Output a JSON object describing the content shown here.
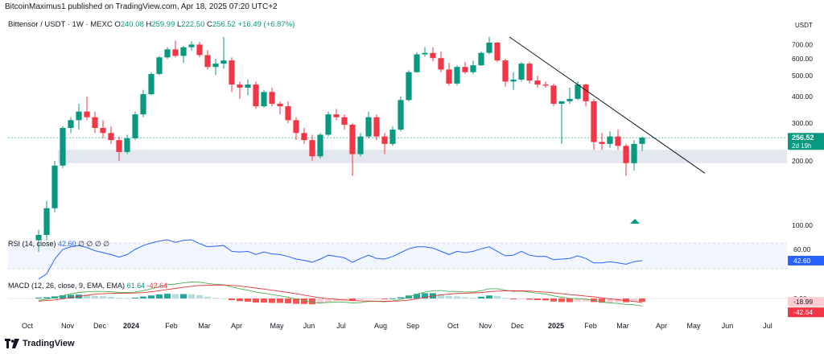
{
  "header": {
    "publisher": "BitcoinMaximus1 published on TradingView.com, Apr 18, 2025 07:20 UTC+2",
    "symbol": "Bittensor / USDT · 1W · MEXC",
    "ohlc": {
      "o_label": "O",
      "o": "240.08",
      "h_label": "H",
      "h": "259.99",
      "l_label": "L",
      "l": "222.50",
      "c_label": "C",
      "c": "256.52",
      "change": "+16.49 (+6.87%)"
    }
  },
  "footer": {
    "brand": "TradingView"
  },
  "colors": {
    "up": "#089981",
    "down": "#f23645",
    "rsi": "#2962ff",
    "macd_line": "#2962ff",
    "signal_line": "#ff6d00",
    "trendline": "#131722",
    "support_zone": "#e0e3eb"
  },
  "chart_data": [
    {
      "type": "candlestick",
      "title": "Bittensor / USDT · 1W · MEXC",
      "currency": "USDT",
      "y_ticks": [
        "700.00",
        "600.00",
        "500.00",
        "400.00",
        "300.00",
        "200.00",
        "100.00"
      ],
      "x_ticks": [
        "Oct",
        "Nov",
        "Dec",
        "2024",
        "Feb",
        "Mar",
        "Apr",
        "May",
        "Jun",
        "Jul",
        "Aug",
        "Sep",
        "Oct",
        "Nov",
        "Dec",
        "2025",
        "Feb",
        "Mar",
        "Apr",
        "May",
        "Jun",
        "Jul"
      ],
      "price_label": "256.52",
      "countdown_label": "2d 19h",
      "support_zone": [
        195,
        225
      ],
      "trendline": {
        "from": [
          "2024-11-25",
          760
        ],
        "to": [
          "2025-05-05",
          175
        ]
      },
      "candles": [
        {
          "o": 85,
          "h": 95,
          "l": 75,
          "c": 90
        },
        {
          "o": 90,
          "h": 130,
          "l": 85,
          "c": 120
        },
        {
          "o": 120,
          "h": 200,
          "l": 115,
          "c": 190
        },
        {
          "o": 190,
          "h": 290,
          "l": 185,
          "c": 285
        },
        {
          "o": 285,
          "h": 320,
          "l": 270,
          "c": 310
        },
        {
          "o": 310,
          "h": 370,
          "l": 280,
          "c": 340
        },
        {
          "o": 340,
          "h": 400,
          "l": 310,
          "c": 320
        },
        {
          "o": 320,
          "h": 340,
          "l": 270,
          "c": 285
        },
        {
          "o": 285,
          "h": 310,
          "l": 255,
          "c": 270
        },
        {
          "o": 270,
          "h": 290,
          "l": 240,
          "c": 250
        },
        {
          "o": 250,
          "h": 260,
          "l": 200,
          "c": 220
        },
        {
          "o": 220,
          "h": 265,
          "l": 215,
          "c": 255
        },
        {
          "o": 255,
          "h": 340,
          "l": 250,
          "c": 330
        },
        {
          "o": 330,
          "h": 430,
          "l": 320,
          "c": 410
        },
        {
          "o": 410,
          "h": 520,
          "l": 405,
          "c": 510
        },
        {
          "o": 510,
          "h": 620,
          "l": 505,
          "c": 610
        },
        {
          "o": 610,
          "h": 680,
          "l": 600,
          "c": 665
        },
        {
          "o": 665,
          "h": 730,
          "l": 610,
          "c": 620
        },
        {
          "o": 620,
          "h": 690,
          "l": 575,
          "c": 680
        },
        {
          "o": 680,
          "h": 725,
          "l": 655,
          "c": 700
        },
        {
          "o": 700,
          "h": 720,
          "l": 610,
          "c": 625
        },
        {
          "o": 625,
          "h": 660,
          "l": 535,
          "c": 550
        },
        {
          "o": 550,
          "h": 600,
          "l": 505,
          "c": 570
        },
        {
          "o": 570,
          "h": 760,
          "l": 540,
          "c": 590
        },
        {
          "o": 590,
          "h": 610,
          "l": 420,
          "c": 455
        },
        {
          "o": 455,
          "h": 470,
          "l": 390,
          "c": 440
        },
        {
          "o": 440,
          "h": 480,
          "l": 405,
          "c": 455
        },
        {
          "o": 455,
          "h": 470,
          "l": 350,
          "c": 360
        },
        {
          "o": 360,
          "h": 430,
          "l": 355,
          "c": 420
        },
        {
          "o": 420,
          "h": 440,
          "l": 360,
          "c": 370
        },
        {
          "o": 370,
          "h": 380,
          "l": 330,
          "c": 360
        },
        {
          "o": 360,
          "h": 380,
          "l": 300,
          "c": 310
        },
        {
          "o": 310,
          "h": 320,
          "l": 250,
          "c": 270
        },
        {
          "o": 270,
          "h": 285,
          "l": 240,
          "c": 250
        },
        {
          "o": 250,
          "h": 265,
          "l": 200,
          "c": 210
        },
        {
          "o": 210,
          "h": 270,
          "l": 205,
          "c": 265
        },
        {
          "o": 265,
          "h": 340,
          "l": 260,
          "c": 330
        },
        {
          "o": 330,
          "h": 350,
          "l": 310,
          "c": 320
        },
        {
          "o": 320,
          "h": 330,
          "l": 280,
          "c": 295
        },
        {
          "o": 295,
          "h": 300,
          "l": 170,
          "c": 215
        },
        {
          "o": 215,
          "h": 270,
          "l": 210,
          "c": 260
        },
        {
          "o": 260,
          "h": 340,
          "l": 255,
          "c": 320
        },
        {
          "o": 320,
          "h": 330,
          "l": 250,
          "c": 260
        },
        {
          "o": 260,
          "h": 270,
          "l": 215,
          "c": 240
        },
        {
          "o": 240,
          "h": 290,
          "l": 235,
          "c": 280
        },
        {
          "o": 280,
          "h": 400,
          "l": 275,
          "c": 385
        },
        {
          "o": 385,
          "h": 530,
          "l": 380,
          "c": 520
        },
        {
          "o": 520,
          "h": 645,
          "l": 515,
          "c": 630
        },
        {
          "o": 630,
          "h": 680,
          "l": 615,
          "c": 640
        },
        {
          "o": 640,
          "h": 680,
          "l": 585,
          "c": 605
        },
        {
          "o": 605,
          "h": 650,
          "l": 520,
          "c": 535
        },
        {
          "o": 535,
          "h": 575,
          "l": 450,
          "c": 460
        },
        {
          "o": 460,
          "h": 560,
          "l": 450,
          "c": 550
        },
        {
          "o": 550,
          "h": 580,
          "l": 510,
          "c": 520
        },
        {
          "o": 520,
          "h": 590,
          "l": 510,
          "c": 560
        },
        {
          "o": 560,
          "h": 650,
          "l": 555,
          "c": 640
        },
        {
          "o": 640,
          "h": 760,
          "l": 630,
          "c": 715
        },
        {
          "o": 715,
          "h": 720,
          "l": 580,
          "c": 590
        },
        {
          "o": 590,
          "h": 600,
          "l": 445,
          "c": 470
        },
        {
          "o": 470,
          "h": 520,
          "l": 430,
          "c": 480
        },
        {
          "o": 480,
          "h": 580,
          "l": 470,
          "c": 570
        },
        {
          "o": 570,
          "h": 580,
          "l": 460,
          "c": 475
        },
        {
          "o": 475,
          "h": 500,
          "l": 440,
          "c": 455
        },
        {
          "o": 455,
          "h": 470,
          "l": 440,
          "c": 450
        },
        {
          "o": 450,
          "h": 460,
          "l": 360,
          "c": 370
        },
        {
          "o": 370,
          "h": 380,
          "l": 240,
          "c": 380
        },
        {
          "o": 380,
          "h": 440,
          "l": 370,
          "c": 390
        },
        {
          "o": 390,
          "h": 470,
          "l": 385,
          "c": 455
        },
        {
          "o": 455,
          "h": 460,
          "l": 360,
          "c": 380
        },
        {
          "o": 380,
          "h": 390,
          "l": 225,
          "c": 245
        },
        {
          "o": 245,
          "h": 270,
          "l": 225,
          "c": 240
        },
        {
          "o": 240,
          "h": 275,
          "l": 230,
          "c": 260
        },
        {
          "o": 260,
          "h": 280,
          "l": 225,
          "c": 235
        },
        {
          "o": 235,
          "h": 240,
          "l": 170,
          "c": 195
        },
        {
          "o": 195,
          "h": 250,
          "l": 180,
          "c": 240
        },
        {
          "o": 240,
          "h": 260,
          "l": 222.5,
          "c": 256.52
        }
      ]
    },
    {
      "type": "line",
      "title": "RSI (14, close)",
      "label_value": "42.60",
      "placeholders": [
        "∅",
        "∅",
        "∅",
        "∅"
      ],
      "bands": [
        70,
        30
      ],
      "y_ticks": [
        "60.00"
      ],
      "last_value_label": "42.60",
      "values": [
        14,
        22,
        45,
        60,
        64,
        66,
        63,
        58,
        55,
        52,
        48,
        52,
        60,
        66,
        70,
        73,
        75,
        71,
        74,
        75,
        69,
        64,
        65,
        66,
        57,
        56,
        57,
        52,
        56,
        53,
        52,
        49,
        45,
        43,
        40,
        45,
        51,
        49,
        47,
        40,
        46,
        51,
        46,
        45,
        49,
        55,
        61,
        64,
        64,
        62,
        57,
        52,
        57,
        55,
        57,
        61,
        64,
        57,
        50,
        51,
        57,
        51,
        49,
        49,
        44,
        45,
        46,
        50,
        46,
        39,
        39,
        41,
        39,
        37,
        41,
        42.6
      ]
    },
    {
      "type": "histogram",
      "title": "MACD (12, 26, close, 9, EMA, EMA)",
      "label_values": [
        "61.64",
        "-42.64"
      ],
      "last_value_labels": [
        "0.00",
        "-18.99",
        "-42.64"
      ],
      "y_ticks": [
        "0.00"
      ],
      "macd": [
        -10,
        -5,
        4,
        16,
        26,
        34,
        38,
        40,
        40,
        38,
        34,
        33,
        36,
        44,
        55,
        67,
        78,
        82,
        88,
        93,
        92,
        85,
        80,
        78,
        65,
        55,
        47,
        36,
        30,
        22,
        15,
        7,
        -3,
        -12,
        -22,
        -25,
        -22,
        -20,
        -20,
        -25,
        -23,
        -17,
        -17,
        -18,
        -14,
        -6,
        8,
        24,
        36,
        44,
        45,
        40,
        40,
        37,
        37,
        44,
        55,
        55,
        47,
        40,
        42,
        36,
        30,
        25,
        15,
        7,
        1,
        -1,
        -4,
        -11,
        -20,
        -25,
        -28,
        -33,
        -35,
        -42.64
      ],
      "signal": [
        -15,
        -12,
        -8,
        -2,
        5,
        12,
        18,
        24,
        27,
        29,
        30,
        30,
        31,
        33,
        38,
        44,
        51,
        57,
        63,
        69,
        73,
        75,
        76,
        76,
        74,
        70,
        65,
        59,
        53,
        47,
        40,
        34,
        27,
        19,
        11,
        4,
        -1,
        -5,
        -8,
        -11,
        -14,
        -14,
        -15,
        -16,
        -15,
        -13,
        -9,
        -2,
        6,
        14,
        21,
        25,
        28,
        30,
        32,
        34,
        38,
        42,
        43,
        43,
        43,
        42,
        39,
        36,
        32,
        27,
        22,
        18,
        13,
        9,
        4,
        -2,
        -7,
        -12,
        -17,
        -23.65
      ],
      "histogram": [
        5,
        7,
        12,
        18,
        21,
        22,
        20,
        16,
        13,
        9,
        4,
        3,
        5,
        11,
        17,
        23,
        27,
        25,
        25,
        24,
        19,
        10,
        4,
        2,
        -9,
        -15,
        -18,
        -23,
        -23,
        -25,
        -25,
        -27,
        -30,
        -31,
        -33,
        -29,
        -21,
        -15,
        -12,
        -14,
        -9,
        -3,
        -2,
        -2,
        1,
        7,
        17,
        26,
        30,
        30,
        24,
        15,
        12,
        7,
        5,
        10,
        17,
        13,
        4,
        -3,
        -1,
        -6,
        -9,
        -11,
        -17,
        -20,
        -21,
        -19,
        -17,
        -20,
        -24,
        -23,
        -21,
        -21,
        -18,
        -18.99
      ]
    }
  ]
}
